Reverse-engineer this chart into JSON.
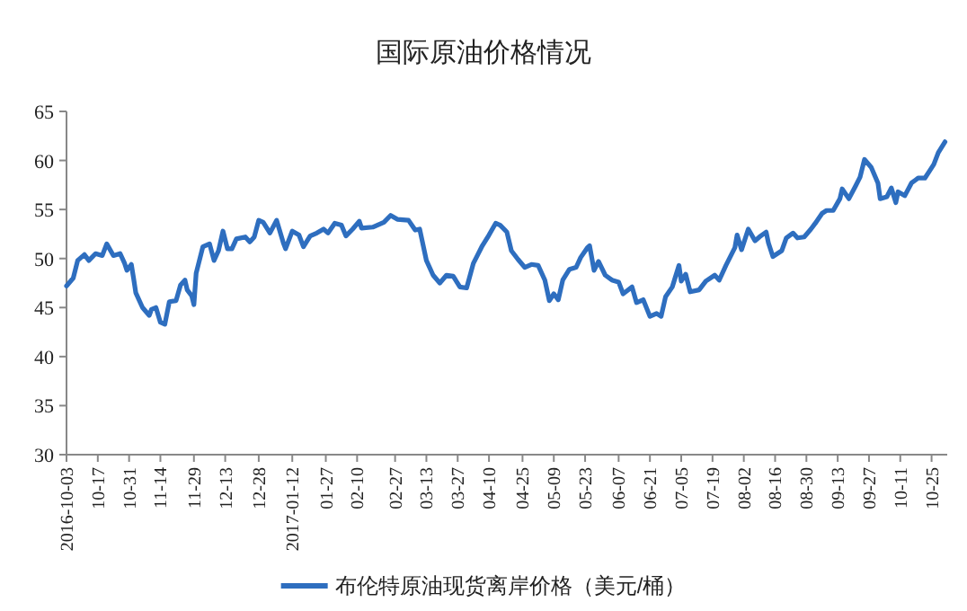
{
  "chart_data": {
    "type": "line",
    "title": "国际原油价格情况",
    "legend": "bottom",
    "grid": false,
    "marker": "none",
    "line_style": "solid",
    "xlim": [
      "2016-10-03",
      "2017-11-01"
    ],
    "ylim": [
      30,
      65
    ],
    "yticks": [
      30,
      35,
      40,
      45,
      50,
      55,
      60,
      65
    ],
    "xticks": [
      {
        "value": "2016-10-03",
        "label": "2016-10-03"
      },
      {
        "value": "2016-10-17",
        "label": "10-17"
      },
      {
        "value": "2016-10-31",
        "label": "10-31"
      },
      {
        "value": "2016-11-14",
        "label": "11-14"
      },
      {
        "value": "2016-11-29",
        "label": "11-29"
      },
      {
        "value": "2016-12-13",
        "label": "12-13"
      },
      {
        "value": "2016-12-28",
        "label": "12-28"
      },
      {
        "value": "2017-01-12",
        "label": "2017-01-12"
      },
      {
        "value": "2017-01-27",
        "label": "01-27"
      },
      {
        "value": "2017-02-10",
        "label": "02-10"
      },
      {
        "value": "2017-02-27",
        "label": "02-27"
      },
      {
        "value": "2017-03-13",
        "label": "03-13"
      },
      {
        "value": "2017-03-27",
        "label": "03-27"
      },
      {
        "value": "2017-04-10",
        "label": "04-10"
      },
      {
        "value": "2017-04-25",
        "label": "04-25"
      },
      {
        "value": "2017-05-09",
        "label": "05-09"
      },
      {
        "value": "2017-05-23",
        "label": "05-23"
      },
      {
        "value": "2017-06-07",
        "label": "06-07"
      },
      {
        "value": "2017-06-21",
        "label": "06-21"
      },
      {
        "value": "2017-07-05",
        "label": "07-05"
      },
      {
        "value": "2017-07-19",
        "label": "07-19"
      },
      {
        "value": "2017-08-02",
        "label": "08-02"
      },
      {
        "value": "2017-08-16",
        "label": "08-16"
      },
      {
        "value": "2017-08-30",
        "label": "08-30"
      },
      {
        "value": "2017-09-13",
        "label": "09-13"
      },
      {
        "value": "2017-09-27",
        "label": "09-27"
      },
      {
        "value": "2017-10-11",
        "label": "10-11"
      },
      {
        "value": "2017-10-25",
        "label": "10-25"
      }
    ],
    "series": [
      {
        "name": "布伦特原油现货离岸价格（美元/桶）",
        "color": "#2e6ebf",
        "x": [
          "2016-10-03",
          "2016-10-06",
          "2016-10-08",
          "2016-10-11",
          "2016-10-13",
          "2016-10-16",
          "2016-10-19",
          "2016-10-21",
          "2016-10-24",
          "2016-10-27",
          "2016-10-29",
          "2016-10-30",
          "2016-11-01",
          "2016-11-02",
          "2016-11-03",
          "2016-11-06",
          "2016-11-09",
          "2016-11-10",
          "2016-11-12",
          "2016-11-14",
          "2016-11-16",
          "2016-11-18",
          "2016-11-21",
          "2016-11-23",
          "2016-11-25",
          "2016-11-26",
          "2016-11-28",
          "2016-11-29",
          "2016-11-30",
          "2016-12-03",
          "2016-12-06",
          "2016-12-08",
          "2016-12-10",
          "2016-12-12",
          "2016-12-14",
          "2016-12-16",
          "2016-12-18",
          "2016-12-22",
          "2016-12-24",
          "2016-12-26",
          "2016-12-28",
          "2016-12-30",
          "2017-01-02",
          "2017-01-05",
          "2017-01-08",
          "2017-01-09",
          "2017-01-12",
          "2017-01-15",
          "2017-01-17",
          "2017-01-20",
          "2017-01-23",
          "2017-01-26",
          "2017-01-28",
          "2017-01-31",
          "2017-02-03",
          "2017-02-05",
          "2017-02-08",
          "2017-02-11",
          "2017-02-12",
          "2017-02-17",
          "2017-02-22",
          "2017-02-25",
          "2017-02-28",
          "2017-03-05",
          "2017-03-08",
          "2017-03-10",
          "2017-03-13",
          "2017-03-16",
          "2017-03-19",
          "2017-03-22",
          "2017-03-25",
          "2017-03-28",
          "2017-03-31",
          "2017-04-03",
          "2017-04-05",
          "2017-04-07",
          "2017-04-10",
          "2017-04-13",
          "2017-04-15",
          "2017-04-18",
          "2017-04-20",
          "2017-04-23",
          "2017-04-26",
          "2017-04-29",
          "2017-05-02",
          "2017-05-05",
          "2017-05-07",
          "2017-05-09",
          "2017-05-11",
          "2017-05-13",
          "2017-05-16",
          "2017-05-19",
          "2017-05-21",
          "2017-05-24",
          "2017-05-25",
          "2017-05-27",
          "2017-05-29",
          "2017-06-01",
          "2017-06-04",
          "2017-06-07",
          "2017-06-09",
          "2017-06-13",
          "2017-06-15",
          "2017-06-18",
          "2017-06-21",
          "2017-06-24",
          "2017-06-26",
          "2017-06-28",
          "2017-07-01",
          "2017-07-04",
          "2017-07-05",
          "2017-07-07",
          "2017-07-09",
          "2017-07-13",
          "2017-07-16",
          "2017-07-20",
          "2017-07-22",
          "2017-07-25",
          "2017-07-29",
          "2017-07-30",
          "2017-08-01",
          "2017-08-04",
          "2017-08-07",
          "2017-08-09",
          "2017-08-12",
          "2017-08-13",
          "2017-08-15",
          "2017-08-19",
          "2017-08-21",
          "2017-08-24",
          "2017-08-26",
          "2017-08-29",
          "2017-09-01",
          "2017-09-03",
          "2017-09-06",
          "2017-09-08",
          "2017-09-11",
          "2017-09-14",
          "2017-09-15",
          "2017-09-18",
          "2017-09-21",
          "2017-09-23",
          "2017-09-25",
          "2017-09-28",
          "2017-10-01",
          "2017-10-02",
          "2017-10-05",
          "2017-10-07",
          "2017-10-09",
          "2017-10-10",
          "2017-10-13",
          "2017-10-16",
          "2017-10-19",
          "2017-10-22",
          "2017-10-24",
          "2017-10-26",
          "2017-10-28",
          "2017-10-31"
        ],
        "values": [
          47.2,
          48.0,
          49.8,
          50.4,
          49.8,
          50.5,
          50.3,
          51.5,
          50.3,
          50.5,
          49.5,
          48.8,
          49.4,
          48.0,
          46.5,
          45.0,
          44.2,
          44.8,
          45.0,
          43.5,
          43.3,
          45.6,
          45.7,
          47.3,
          47.8,
          46.8,
          46.2,
          45.3,
          48.5,
          51.2,
          51.5,
          49.8,
          50.8,
          52.8,
          51.0,
          51.0,
          52.0,
          52.2,
          51.7,
          52.2,
          53.9,
          53.7,
          52.6,
          53.9,
          51.6,
          51.0,
          52.8,
          52.4,
          51.2,
          52.3,
          52.6,
          53.0,
          52.6,
          53.6,
          53.4,
          52.3,
          53.0,
          53.8,
          53.1,
          53.2,
          53.7,
          54.4,
          54.0,
          53.9,
          52.9,
          53.0,
          49.8,
          48.3,
          47.5,
          48.3,
          48.2,
          47.1,
          47.0,
          49.5,
          50.4,
          51.3,
          52.4,
          53.6,
          53.4,
          52.7,
          50.8,
          49.9,
          49.1,
          49.4,
          49.3,
          47.8,
          45.7,
          46.4,
          45.8,
          47.8,
          48.9,
          49.1,
          50.1,
          51.1,
          51.3,
          48.8,
          49.7,
          48.3,
          47.8,
          47.6,
          46.4,
          47.1,
          45.5,
          45.8,
          44.1,
          44.4,
          44.1,
          46.1,
          47.1,
          49.3,
          47.7,
          48.4,
          46.6,
          46.8,
          47.7,
          48.3,
          47.8,
          49.3,
          51.1,
          52.4,
          50.9,
          53.0,
          51.8,
          52.2,
          52.7,
          51.6,
          50.2,
          50.8,
          52.1,
          52.6,
          52.1,
          52.2,
          53.0,
          53.6,
          54.6,
          54.9,
          54.9,
          56.1,
          57.1,
          56.1,
          57.4,
          58.3,
          60.1,
          59.3,
          57.7,
          56.1,
          56.3,
          57.2,
          55.7,
          56.8,
          56.4,
          57.7,
          58.2,
          58.2,
          58.9,
          59.6,
          60.8,
          61.9
        ]
      }
    ]
  }
}
